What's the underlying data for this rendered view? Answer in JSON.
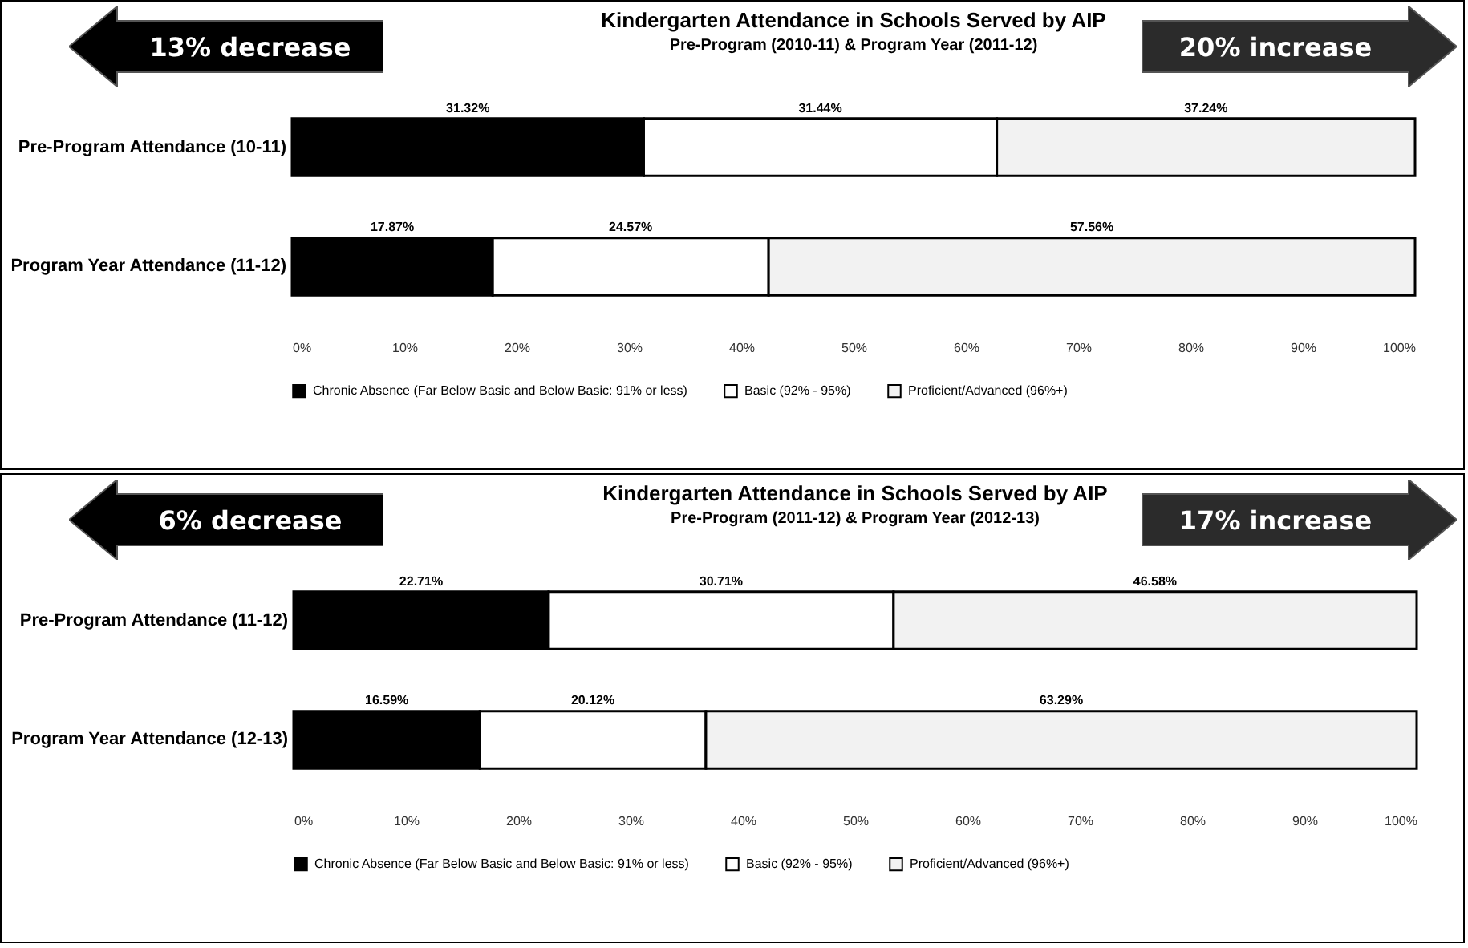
{
  "chart_data": [
    {
      "type": "bar",
      "orientation": "horizontal",
      "stacked": true,
      "title": "Kindergarten Attendance in Schools Served by AIP",
      "subtitle": "Pre-Program (2010-11) & Program Year (2011-12)",
      "categories": [
        "Pre-Program Attendance (10-11)",
        "Program Year Attendance (11-12)"
      ],
      "series": [
        {
          "name": "Chronic Absence (Far Below Basic and Below Basic: 91% or less)",
          "color": "#000000",
          "values": [
            31.32,
            17.87
          ],
          "value_labels": [
            "31.32%",
            "17.87%"
          ]
        },
        {
          "name": "Basic (92% - 95%)",
          "color": "#ffffff",
          "values": [
            31.44,
            24.57
          ],
          "value_labels": [
            "31.44%",
            "24.57%"
          ]
        },
        {
          "name": "Proficient/Advanced (96%+)",
          "color": "#f2f2f2",
          "values": [
            37.24,
            57.56
          ],
          "value_labels": [
            "37.24%",
            "57.56%"
          ]
        }
      ],
      "xlim": [
        0,
        100
      ],
      "xticks": [
        {
          "value": 0,
          "label": "0%"
        },
        {
          "value": 10,
          "label": "10%"
        },
        {
          "value": 20,
          "label": "20%"
        },
        {
          "value": 30,
          "label": "30%"
        },
        {
          "value": 40,
          "label": "40%"
        },
        {
          "value": 50,
          "label": "50%"
        },
        {
          "value": 60,
          "label": "60%"
        },
        {
          "value": 70,
          "label": "70%"
        },
        {
          "value": 80,
          "label": "80%"
        },
        {
          "value": 90,
          "label": "90%"
        },
        {
          "value": 100,
          "label": "100%"
        }
      ],
      "annotations": [
        "13% decrease",
        "20% increase"
      ],
      "legend": "bottom",
      "grid": false
    },
    {
      "type": "bar",
      "orientation": "horizontal",
      "stacked": true,
      "title": "Kindergarten Attendance in Schools Served by AIP",
      "subtitle": "Pre-Program (2011-12) & Program Year (2012-13)",
      "categories": [
        "Pre-Program Attendance (11-12)",
        "Program Year Attendance (12-13)"
      ],
      "series": [
        {
          "name": "Chronic Absence (Far Below Basic and Below Basic: 91% or less)",
          "color": "#000000",
          "values": [
            22.71,
            16.59
          ],
          "value_labels": [
            "22.71%",
            "16.59%"
          ]
        },
        {
          "name": "Basic (92% - 95%)",
          "color": "#ffffff",
          "values": [
            30.71,
            20.12
          ],
          "value_labels": [
            "30.71%",
            "20.12%"
          ]
        },
        {
          "name": "Proficient/Advanced (96%+)",
          "color": "#f2f2f2",
          "values": [
            46.58,
            63.29
          ],
          "value_labels": [
            "46.58%",
            "63.29%"
          ]
        }
      ],
      "xlim": [
        0,
        100
      ],
      "xticks": [
        {
          "value": 0,
          "label": "0%"
        },
        {
          "value": 10,
          "label": "10%"
        },
        {
          "value": 20,
          "label": "20%"
        },
        {
          "value": 30,
          "label": "30%"
        },
        {
          "value": 40,
          "label": "40%"
        },
        {
          "value": 50,
          "label": "50%"
        },
        {
          "value": 60,
          "label": "60%"
        },
        {
          "value": 70,
          "label": "70%"
        },
        {
          "value": 80,
          "label": "80%"
        },
        {
          "value": 90,
          "label": "90%"
        },
        {
          "value": 100,
          "label": "100%"
        }
      ],
      "annotations": [
        "6% decrease",
        "17% increase"
      ],
      "legend": "bottom",
      "grid": false
    }
  ]
}
